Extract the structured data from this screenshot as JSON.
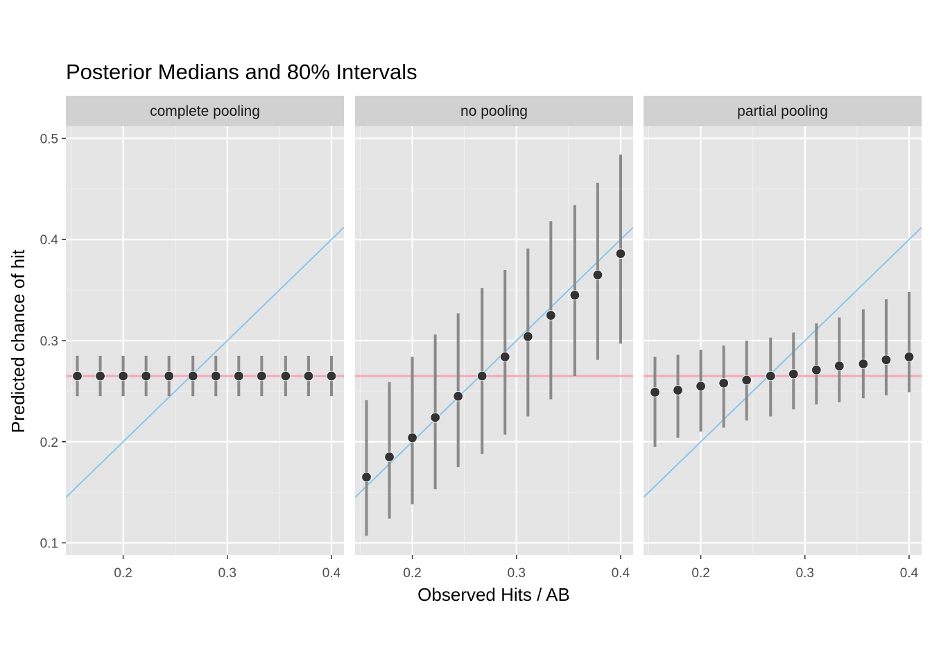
{
  "chart_data": {
    "type": "scatter",
    "title": "Posterior Medians and 80% Intervals",
    "xlabel": "Observed Hits / AB",
    "ylabel": "Predicted chance of hit",
    "xlim": [
      0.145,
      0.412
    ],
    "ylim": [
      0.088,
      0.512
    ],
    "x_ticks": [
      0.2,
      0.3,
      0.4
    ],
    "x_tick_labels": [
      "0.2",
      "0.3",
      "0.4"
    ],
    "y_ticks": [
      0.1,
      0.2,
      0.3,
      0.4,
      0.5
    ],
    "y_tick_labels": [
      "0.1",
      "0.2",
      "0.3",
      "0.4",
      "0.5"
    ],
    "grid": true,
    "reference_lines": {
      "identity_color": "#87c7ea",
      "pooled_mean": 0.265,
      "pooled_mean_color": "#f7a8b8"
    },
    "colors": {
      "panel_bg": "#e5e5e5",
      "strip_bg": "#d1d1d1",
      "interval": "#8a8a8a",
      "point": "#333333"
    },
    "panels": [
      {
        "label": "complete pooling",
        "points": [
          {
            "x": 0.156,
            "median": 0.265,
            "low": 0.245,
            "high": 0.285
          },
          {
            "x": 0.178,
            "median": 0.265,
            "low": 0.245,
            "high": 0.285
          },
          {
            "x": 0.2,
            "median": 0.265,
            "low": 0.245,
            "high": 0.285
          },
          {
            "x": 0.222,
            "median": 0.265,
            "low": 0.245,
            "high": 0.285
          },
          {
            "x": 0.244,
            "median": 0.265,
            "low": 0.245,
            "high": 0.285
          },
          {
            "x": 0.267,
            "median": 0.265,
            "low": 0.245,
            "high": 0.285
          },
          {
            "x": 0.289,
            "median": 0.265,
            "low": 0.245,
            "high": 0.285
          },
          {
            "x": 0.311,
            "median": 0.265,
            "low": 0.245,
            "high": 0.285
          },
          {
            "x": 0.333,
            "median": 0.265,
            "low": 0.245,
            "high": 0.285
          },
          {
            "x": 0.356,
            "median": 0.265,
            "low": 0.245,
            "high": 0.285
          },
          {
            "x": 0.378,
            "median": 0.265,
            "low": 0.245,
            "high": 0.285
          },
          {
            "x": 0.4,
            "median": 0.265,
            "low": 0.245,
            "high": 0.285
          }
        ]
      },
      {
        "label": "no pooling",
        "points": [
          {
            "x": 0.156,
            "median": 0.165,
            "low": 0.107,
            "high": 0.241
          },
          {
            "x": 0.178,
            "median": 0.185,
            "low": 0.124,
            "high": 0.259
          },
          {
            "x": 0.2,
            "median": 0.204,
            "low": 0.138,
            "high": 0.284
          },
          {
            "x": 0.222,
            "median": 0.224,
            "low": 0.153,
            "high": 0.306
          },
          {
            "x": 0.244,
            "median": 0.245,
            "low": 0.175,
            "high": 0.327
          },
          {
            "x": 0.267,
            "median": 0.265,
            "low": 0.188,
            "high": 0.352
          },
          {
            "x": 0.289,
            "median": 0.284,
            "low": 0.207,
            "high": 0.37
          },
          {
            "x": 0.311,
            "median": 0.304,
            "low": 0.225,
            "high": 0.391
          },
          {
            "x": 0.333,
            "median": 0.325,
            "low": 0.242,
            "high": 0.418
          },
          {
            "x": 0.356,
            "median": 0.345,
            "low": 0.265,
            "high": 0.434
          },
          {
            "x": 0.378,
            "median": 0.365,
            "low": 0.281,
            "high": 0.456
          },
          {
            "x": 0.4,
            "median": 0.386,
            "low": 0.297,
            "high": 0.484
          }
        ]
      },
      {
        "label": "partial pooling",
        "points": [
          {
            "x": 0.156,
            "median": 0.249,
            "low": 0.195,
            "high": 0.284
          },
          {
            "x": 0.178,
            "median": 0.251,
            "low": 0.204,
            "high": 0.286
          },
          {
            "x": 0.2,
            "median": 0.255,
            "low": 0.21,
            "high": 0.291
          },
          {
            "x": 0.222,
            "median": 0.258,
            "low": 0.214,
            "high": 0.295
          },
          {
            "x": 0.244,
            "median": 0.261,
            "low": 0.221,
            "high": 0.3
          },
          {
            "x": 0.267,
            "median": 0.265,
            "low": 0.225,
            "high": 0.303
          },
          {
            "x": 0.289,
            "median": 0.267,
            "low": 0.232,
            "high": 0.308
          },
          {
            "x": 0.311,
            "median": 0.271,
            "low": 0.237,
            "high": 0.317
          },
          {
            "x": 0.333,
            "median": 0.275,
            "low": 0.239,
            "high": 0.323
          },
          {
            "x": 0.356,
            "median": 0.277,
            "low": 0.243,
            "high": 0.331
          },
          {
            "x": 0.378,
            "median": 0.281,
            "low": 0.246,
            "high": 0.341
          },
          {
            "x": 0.4,
            "median": 0.284,
            "low": 0.249,
            "high": 0.348
          }
        ]
      }
    ]
  }
}
